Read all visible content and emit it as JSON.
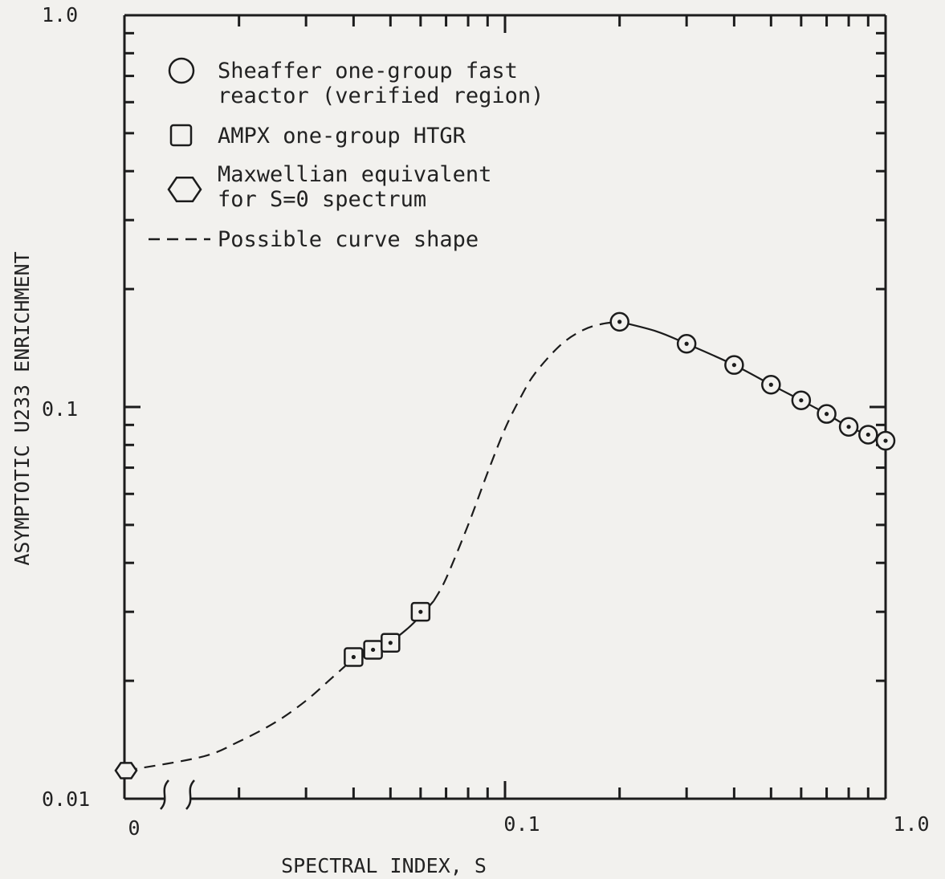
{
  "chart_data": {
    "type": "scatter",
    "title": "",
    "xlabel": "SPECTRAL INDEX, S",
    "ylabel": "ASYMPTOTIC U233 ENRICHMENT",
    "x_scale": "log (with broken axis showing 0)",
    "y_scale": "log",
    "xlim": [
      0.01,
      1.0
    ],
    "ylim": [
      0.01,
      1.0
    ],
    "x_tick_labels": [
      "0",
      "0.1",
      "1.0"
    ],
    "y_tick_labels": [
      "1.0",
      "0.1",
      "0.01"
    ],
    "grid": false,
    "legend_position": "top-left",
    "legend": [
      {
        "marker": "circle",
        "lines": [
          "Sheaffer one-group fast",
          "reactor (verified region)"
        ]
      },
      {
        "marker": "square",
        "lines": [
          "AMPX one-group HTGR"
        ]
      },
      {
        "marker": "hexagon",
        "lines": [
          "Maxwellian equivalent",
          "for S=0 spectrum"
        ]
      },
      {
        "marker": "dashed-line",
        "lines": [
          "Possible curve shape"
        ]
      }
    ],
    "series": [
      {
        "name": "Sheaffer one-group fast reactor (verified region)",
        "marker": "circle",
        "x": [
          0.2,
          0.3,
          0.4,
          0.5,
          0.6,
          0.7,
          0.8,
          0.9,
          1.0
        ],
        "y": [
          0.165,
          0.145,
          0.128,
          0.114,
          0.104,
          0.096,
          0.089,
          0.085,
          0.082
        ]
      },
      {
        "name": "AMPX one-group HTGR",
        "marker": "square",
        "x": [
          0.04,
          0.045,
          0.05,
          0.06
        ],
        "y": [
          0.023,
          0.024,
          0.025,
          0.03
        ]
      },
      {
        "name": "Maxwellian equivalent for S=0 spectrum",
        "marker": "hexagon",
        "x": [
          0
        ],
        "y": [
          0.0118
        ]
      }
    ],
    "curves": {
      "solid_ampx": {
        "x": [
          0.04,
          0.045,
          0.05,
          0.055,
          0.06,
          0.065
        ],
        "y": [
          0.0228,
          0.024,
          0.0252,
          0.027,
          0.0293,
          0.032
        ]
      },
      "dashed_possible": {
        "x": [
          0,
          0.016,
          0.02,
          0.025,
          0.03,
          0.035,
          0.04
        ],
        "y": [
          0.0118,
          0.0128,
          0.014,
          0.0157,
          0.0178,
          0.0203,
          0.0228
        ]
      },
      "dashed_rise": {
        "x": [
          0.065,
          0.07,
          0.08,
          0.09,
          0.1,
          0.11,
          0.12,
          0.14,
          0.16,
          0.18,
          0.2
        ],
        "y": [
          0.032,
          0.0365,
          0.05,
          0.068,
          0.088,
          0.106,
          0.122,
          0.144,
          0.157,
          0.163,
          0.165
        ]
      },
      "solid_sheaffer": {
        "x": [
          0.2,
          0.25,
          0.3,
          0.4,
          0.5,
          0.6,
          0.7,
          0.8,
          0.9,
          1.0
        ],
        "y": [
          0.165,
          0.156,
          0.145,
          0.128,
          0.114,
          0.104,
          0.096,
          0.089,
          0.085,
          0.082
        ]
      }
    }
  }
}
